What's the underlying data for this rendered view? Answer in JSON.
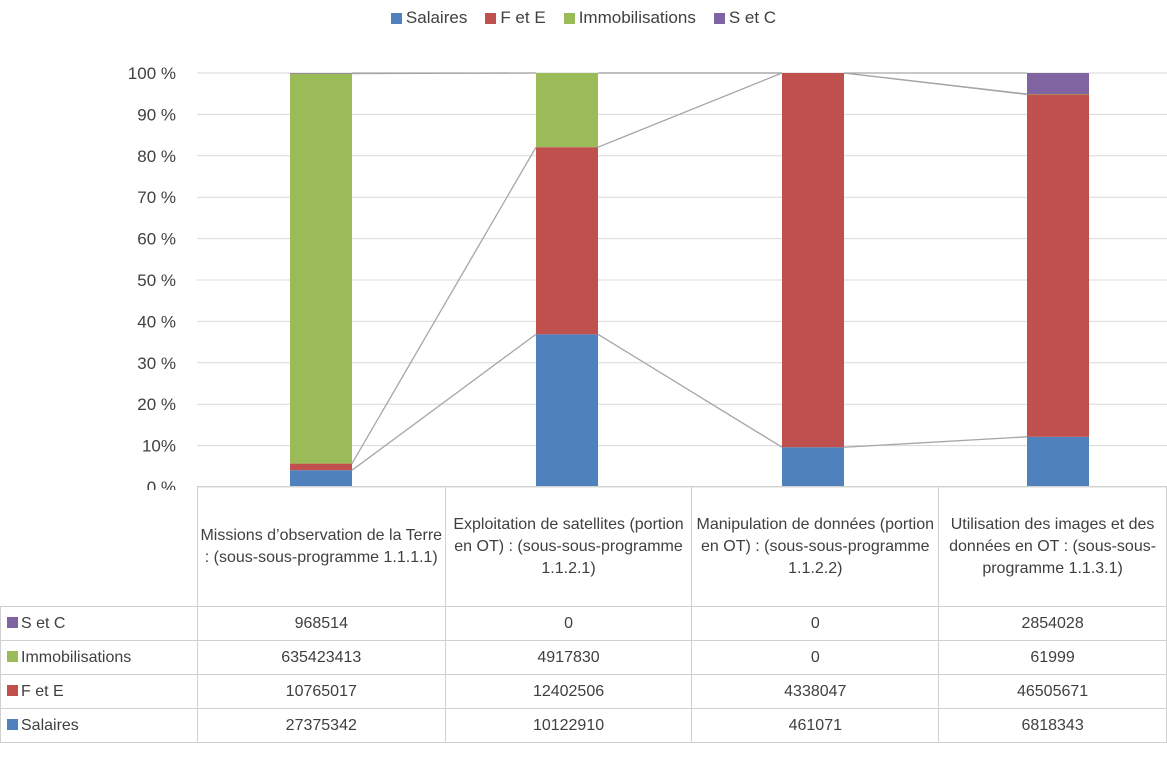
{
  "chart_data": {
    "type": "bar",
    "stacked": "percent",
    "legend_position": "top",
    "grid": true,
    "ylim": [
      0,
      100
    ],
    "y_ticks": [
      "0 %",
      "10%",
      "20 %",
      "30 %",
      "40 %",
      "50 %",
      "60 %",
      "70 %",
      "80 %",
      "90 %",
      "100 %"
    ],
    "categories": [
      "Missions d’observation de la Terre : (sous-sous-programme 1.1.1.1)",
      "Exploitation de satellites (portion en OT) : (sous-sous-programme 1.1.2.1)",
      "Manipulation de données (portion en OT) : (sous-sous-programme 1.1.2.2)",
      "Utilisation des images et des données en OT : (sous-sous-programme 1.1.3.1)"
    ],
    "legend_order": [
      "Salaires",
      "F et E",
      "Immobilisations",
      "S et C"
    ],
    "series": [
      {
        "name": "Salaires",
        "color": "#4f81bd",
        "values": [
          27375342,
          10122910,
          461071,
          6818343
        ],
        "labels": [
          "27375342",
          "10122910",
          "461071",
          "6818343"
        ]
      },
      {
        "name": "F et E",
        "color": "#c0504d",
        "values": [
          10765017,
          12402506,
          4338047,
          46505671
        ],
        "labels": [
          "10765017",
          "12402506",
          "4338047",
          "46505671"
        ]
      },
      {
        "name": "Immobilisations",
        "color": "#9bbb59",
        "values": [
          635423413,
          4917830,
          0,
          61999
        ],
        "labels": [
          "635423413",
          "4917830",
          "0",
          "61999"
        ]
      },
      {
        "name": "S et C",
        "color": "#8064a2",
        "values": [
          968514,
          0,
          0,
          2854028
        ],
        "labels": [
          "968514",
          "0",
          "0",
          "2854028"
        ]
      }
    ],
    "table_row_order": [
      "S et C",
      "Immobilisations",
      "F et E",
      "Salaires"
    ]
  }
}
